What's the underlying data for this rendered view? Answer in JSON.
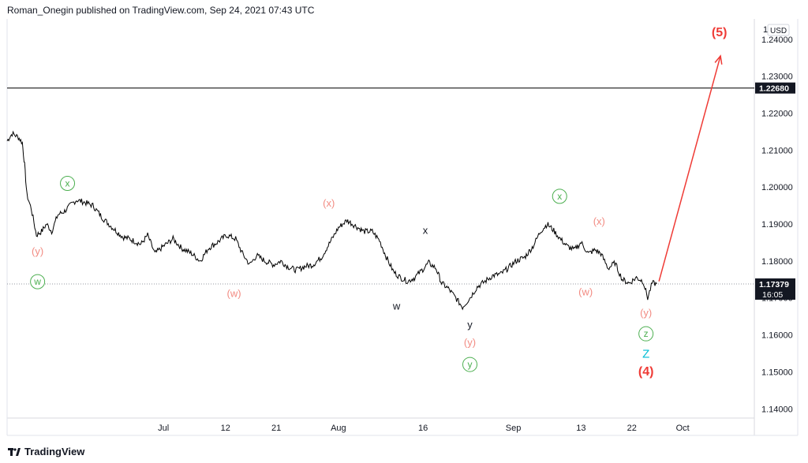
{
  "header": {
    "attribution": "Roman_Onegin published on TradingView.com, Sep 24, 2021 07:43 UTC"
  },
  "footer": {
    "brand": "TradingView"
  },
  "colors": {
    "price_line": "#000000",
    "wave_pink": "#f28b82",
    "wave_green": "#4caf50",
    "wave_black": "#131722",
    "wave_blue": "#00bcd4",
    "wave_red": "#ef3b36",
    "arrow": "#ef3b36",
    "label_bg": "#131722"
  },
  "chart_data": {
    "type": "line",
    "currency_label": "USD",
    "y_axis_top_partial_label": "1",
    "y_ticks": [
      "1.24000",
      "1.23000",
      "1.22000",
      "1.21000",
      "1.20000",
      "1.19000",
      "1.18000",
      "1.17000",
      "1.16000",
      "1.15000",
      "1.14000"
    ],
    "y_tick_values": [
      1.24,
      1.23,
      1.22,
      1.21,
      1.2,
      1.19,
      1.18,
      1.17,
      1.16,
      1.15,
      1.14
    ],
    "ylim": [
      1.1375,
      1.2455
    ],
    "x_ticks": [
      "Jul",
      "12",
      "21",
      "Aug",
      "16",
      "Sep",
      "13",
      "22",
      "Oct"
    ],
    "x_tick_days": [
      30,
      41,
      50,
      61,
      76,
      92,
      104,
      113,
      122
    ],
    "x_unit": "day number counted from 1 Jun 2021",
    "xlim": [
      2.3,
      134.7
    ],
    "horizontal_level": {
      "value": 1.2268,
      "label": "1.22680"
    },
    "last_price": {
      "value": 1.17379,
      "label": "1.17379",
      "countdown": "16:05"
    },
    "price_series": [
      [
        2.3,
        1.2125
      ],
      [
        3.2,
        1.2145
      ],
      [
        4.3,
        1.2135
      ],
      [
        5.0,
        1.212
      ],
      [
        5.4,
        1.206
      ],
      [
        5.8,
        1.198
      ],
      [
        6.6,
        1.194
      ],
      [
        7.5,
        1.187
      ],
      [
        8.4,
        1.188
      ],
      [
        9.3,
        1.19
      ],
      [
        10.2,
        1.188
      ],
      [
        11.3,
        1.1925
      ],
      [
        12.5,
        1.1935
      ],
      [
        13.8,
        1.1955
      ],
      [
        14.6,
        1.1965
      ],
      [
        15.8,
        1.196
      ],
      [
        17.5,
        1.195
      ],
      [
        19.3,
        1.1915
      ],
      [
        21.0,
        1.189
      ],
      [
        22.8,
        1.1865
      ],
      [
        24.0,
        1.186
      ],
      [
        26.0,
        1.1845
      ],
      [
        27.2,
        1.187
      ],
      [
        28.5,
        1.182
      ],
      [
        30.0,
        1.184
      ],
      [
        31.7,
        1.186
      ],
      [
        33.2,
        1.1835
      ],
      [
        35.0,
        1.182
      ],
      [
        36.5,
        1.18
      ],
      [
        38.0,
        1.1835
      ],
      [
        39.5,
        1.185
      ],
      [
        41.2,
        1.187
      ],
      [
        42.8,
        1.186
      ],
      [
        44.0,
        1.182
      ],
      [
        45.3,
        1.179
      ],
      [
        46.5,
        1.1815
      ],
      [
        48.0,
        1.18
      ],
      [
        49.5,
        1.179
      ],
      [
        50.8,
        1.18
      ],
      [
        52.0,
        1.1785
      ],
      [
        53.5,
        1.1775
      ],
      [
        55.0,
        1.1785
      ],
      [
        56.5,
        1.179
      ],
      [
        58.0,
        1.181
      ],
      [
        59.5,
        1.185
      ],
      [
        61.0,
        1.189
      ],
      [
        62.5,
        1.191
      ],
      [
        64.0,
        1.1895
      ],
      [
        65.5,
        1.188
      ],
      [
        67.0,
        1.188
      ],
      [
        68.3,
        1.1855
      ],
      [
        69.5,
        1.181
      ],
      [
        70.8,
        1.177
      ],
      [
        72.0,
        1.1755
      ],
      [
        73.3,
        1.1745
      ],
      [
        74.5,
        1.1755
      ],
      [
        75.8,
        1.1775
      ],
      [
        77.0,
        1.1795
      ],
      [
        78.3,
        1.178
      ],
      [
        79.3,
        1.174
      ],
      [
        80.5,
        1.1725
      ],
      [
        81.8,
        1.17
      ],
      [
        83.0,
        1.1675
      ],
      [
        84.3,
        1.17
      ],
      [
        85.6,
        1.173
      ],
      [
        87.0,
        1.1745
      ],
      [
        88.3,
        1.176
      ],
      [
        89.8,
        1.1765
      ],
      [
        91.0,
        1.178
      ],
      [
        92.5,
        1.18
      ],
      [
        94.0,
        1.181
      ],
      [
        95.5,
        1.184
      ],
      [
        96.8,
        1.188
      ],
      [
        98.0,
        1.19
      ],
      [
        99.0,
        1.1885
      ],
      [
        100.3,
        1.186
      ],
      [
        101.5,
        1.184
      ],
      [
        102.8,
        1.183
      ],
      [
        104.0,
        1.185
      ],
      [
        105.3,
        1.182
      ],
      [
        106.5,
        1.183
      ],
      [
        107.5,
        1.182
      ],
      [
        108.8,
        1.178
      ],
      [
        110.0,
        1.1795
      ],
      [
        111.3,
        1.175
      ],
      [
        112.5,
        1.174
      ],
      [
        113.8,
        1.1755
      ],
      [
        115.0,
        1.1745
      ],
      [
        115.8,
        1.17
      ],
      [
        116.6,
        1.174
      ],
      [
        117.4,
        1.1738
      ]
    ],
    "wave_labels": [
      {
        "text": "x",
        "day": 13.0,
        "price": 1.201,
        "style": "green-circle"
      },
      {
        "text": "(y)",
        "day": 7.7,
        "price": 1.1826,
        "style": "pink"
      },
      {
        "text": "w",
        "day": 7.7,
        "price": 1.1744,
        "style": "green-circle"
      },
      {
        "text": "(w)",
        "day": 42.5,
        "price": 1.1712,
        "style": "pink"
      },
      {
        "text": "(x)",
        "day": 59.3,
        "price": 1.1957,
        "style": "pink"
      },
      {
        "text": "w",
        "day": 71.3,
        "price": 1.1678,
        "style": "black"
      },
      {
        "text": "x",
        "day": 76.4,
        "price": 1.1883,
        "style": "black"
      },
      {
        "text": "y",
        "day": 84.3,
        "price": 1.1628,
        "style": "black"
      },
      {
        "text": "(y)",
        "day": 84.3,
        "price": 1.158,
        "style": "pink"
      },
      {
        "text": "y",
        "day": 84.3,
        "price": 1.152,
        "style": "green-circle"
      },
      {
        "text": "x",
        "day": 100.2,
        "price": 1.1975,
        "style": "green-circle"
      },
      {
        "text": "(x)",
        "day": 107.2,
        "price": 1.1907,
        "style": "pink"
      },
      {
        "text": "(w)",
        "day": 104.8,
        "price": 1.1717,
        "style": "pink"
      },
      {
        "text": "(y)",
        "day": 115.5,
        "price": 1.166,
        "style": "pink"
      },
      {
        "text": "z",
        "day": 115.5,
        "price": 1.1603,
        "style": "green-circle"
      },
      {
        "text": "Z",
        "day": 115.5,
        "price": 1.1548,
        "style": "blue"
      },
      {
        "text": "(4)",
        "day": 115.5,
        "price": 1.15,
        "style": "red"
      },
      {
        "text": "(5)",
        "day": 128.5,
        "price": 1.2418,
        "style": "red"
      }
    ],
    "projection_arrow": {
      "from": [
        117.8,
        1.1745
      ],
      "to": [
        128.7,
        1.2355
      ]
    }
  }
}
